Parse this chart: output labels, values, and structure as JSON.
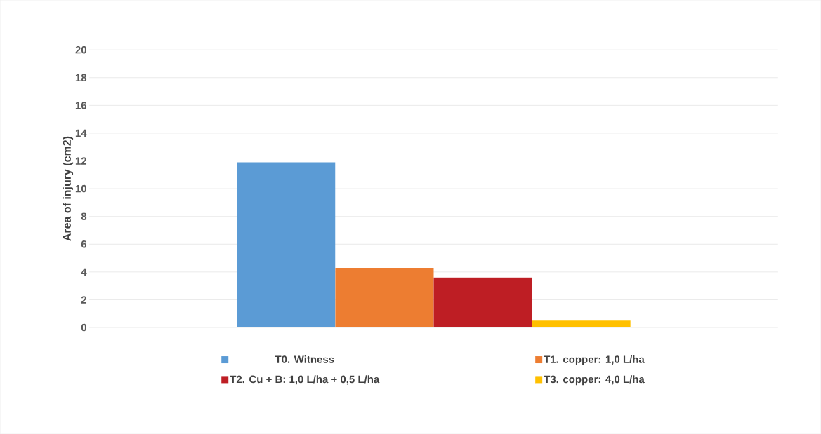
{
  "chart_data": {
    "type": "bar",
    "ylabel": "Area of injury (cm2)",
    "categories": [
      null
    ],
    "series": [
      {
        "name": "T0. Witness",
        "color": "#5b9bd5",
        "values": [
          11.9
        ]
      },
      {
        "name": "T1. copper: 1,0 L/ha",
        "color": "#ed7d31",
        "values": [
          4.3
        ]
      },
      {
        "name": "T2. Cu + B: 1,0 L/ha + 0,5 L/ha",
        "color": "#be1e24",
        "values": [
          3.6
        ]
      },
      {
        "name": "T3. copper: 4,0 L/ha",
        "color": "#ffc000",
        "values": [
          0.5
        ]
      }
    ],
    "ylim": [
      0,
      20
    ],
    "yticks": [
      0,
      2,
      4,
      6,
      8,
      10,
      12,
      14,
      16,
      18,
      20
    ],
    "grid": "y",
    "legend": "bottom"
  }
}
